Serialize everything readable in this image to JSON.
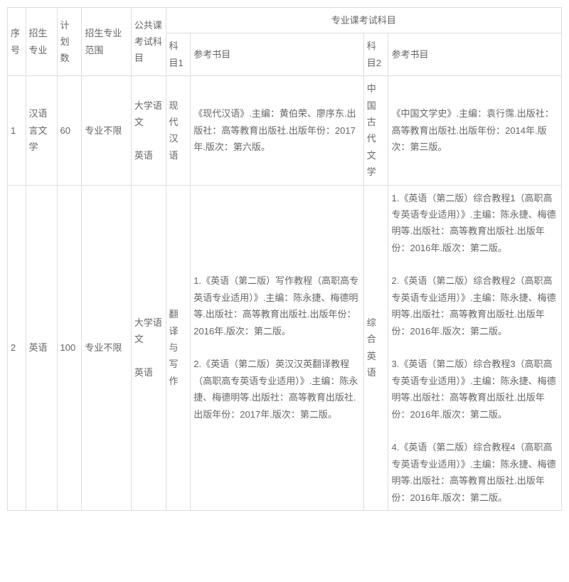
{
  "headers": {
    "seq": "序号",
    "major": "招生专业",
    "plan": "计划数",
    "scope": "招生专业范围",
    "public": "公共课考试科目",
    "prof_group": "专业课考试科目",
    "sub1": "科目1",
    "ref1": "参考书目",
    "sub2": "科目2",
    "ref2": "参考书目"
  },
  "rows": [
    {
      "seq": "1",
      "major": "汉语言文学",
      "plan": "60",
      "scope": "专业不限",
      "public": "大学语文\n\n英语",
      "sub1": "现代汉语",
      "ref1": "《现代汉语》.主编：黄伯荣、廖序东.出版社：高等教育出版社.出版年份：2017年.版次：第六版。",
      "sub2": "中国古代文学",
      "ref2": "《中国文学史》.主编：袁行霈.出版社：高等教育出版社.出版年份：2014年.版次：第三版。"
    },
    {
      "seq": "2",
      "major": "英语",
      "plan": "100",
      "scope": "专业不限",
      "public": "大学语文\n\n英语",
      "sub1": "翻译与写作",
      "ref1": "1.《英语（第二版）写作教程（高职高专英语专业适用）》.主编：陈永捷、梅德明等.出版社：高等教育出版社.出版年份：2016年.版次：第二版。\n\n2.《英语（第二版）英汉汉英翻译教程（高职高专英语专业适用）》.主编：陈永捷、梅德明等.出版社：高等教育出版社.出版年份：2017年.版次：第二版。",
      "sub2": "综合英语",
      "ref2": "1.《英语（第二版）综合教程1（高职高专英语专业适用）》.主编：陈永捷、梅德明等.出版社：高等教育出版社.出版年份：2016年.版次：第二版。\n\n2.《英语（第二版）综合教程2（高职高专英语专业适用）》.主编：陈永捷、梅德明等.出版社：高等教育出版社.出版年份：2016年.版次：第二版。\n\n3.《英语（第二版）综合教程3（高职高专英语专业适用）》.主编：陈永捷、梅德明等.出版社：高等教育出版社.出版年份：2016年.版次：第二版。\n\n4.《英语（第二版）综合教程4（高职高专英语专业适用）》.主编：陈永捷、梅德明等.出版社：高等教育出版社.出版年份：2016年.版次：第二版。"
    }
  ]
}
